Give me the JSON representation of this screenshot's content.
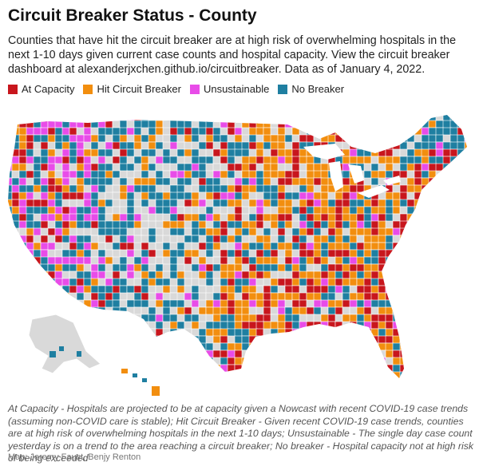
{
  "title": "Circuit Breaker Status - County",
  "subtitle": "Counties that have hit the circuit breaker are at high risk of overwhelming hospitals in the next 1-10 days given current case counts and hospital capacity. View the circuit breaker dashboard at alexanderjxchen.github.io/circuitbreaker. Data as of January 4, 2022.",
  "legend": [
    {
      "label": "At Capacity",
      "color": "#c8161d"
    },
    {
      "label": "Hit Circuit Breaker",
      "color": "#f28e0f"
    },
    {
      "label": "Unsustainable",
      "color": "#e84ce8"
    },
    {
      "label": "No Breaker",
      "color": "#1f7fa1"
    }
  ],
  "no_data_color": "#d9d9d9",
  "notes": "At Capacity - Hospitals are projected to be at capacity given a Nowcast with recent COVID-19 case trends (assuming non-COVID care is stable); Hit Circuit Breaker - Given recent COVID-19 case trends, counties are at high risk of overwhelming hospitals in the next 1-10 days; Unsustainable - The single day case count yesterday is on a trend to the area reaching a circuit breaker; No breaker - Hospital capacity not at high risk of being exceeded",
  "credit": "Map: Jeremy Faust, Benjy Renton"
}
